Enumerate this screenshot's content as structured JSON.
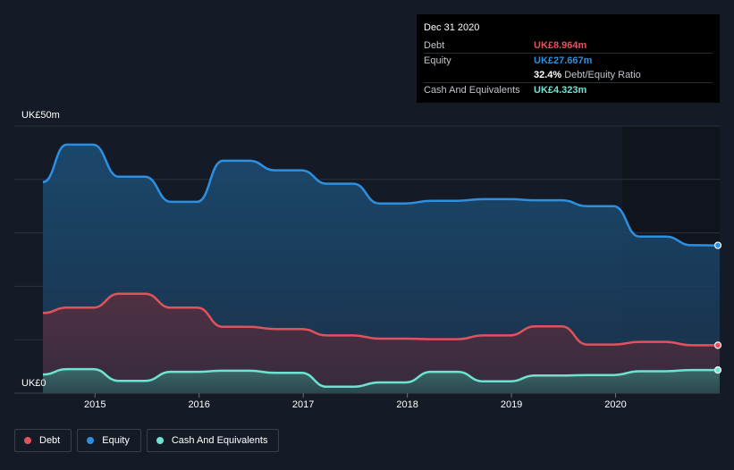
{
  "chart_data": {
    "type": "area",
    "title": "",
    "xlabel": "",
    "ylabel": "",
    "y_tick_labels": [
      "UK£50m",
      "UK£0"
    ],
    "x_tick_labels": [
      "2015",
      "2016",
      "2017",
      "2018",
      "2019",
      "2020"
    ],
    "ylim": [
      0,
      50
    ],
    "xlim": [
      2014.5,
      2021.0
    ],
    "grid": true,
    "legend_position": "bottom-left",
    "series": [
      {
        "name": "Equity",
        "color": "#2d8fe0",
        "x": [
          2014.5,
          2014.73,
          2014.98,
          2015.23,
          2015.48,
          2015.73,
          2015.98,
          2016.23,
          2016.48,
          2016.73,
          2016.98,
          2017.23,
          2017.48,
          2017.73,
          2017.98,
          2018.23,
          2018.48,
          2018.73,
          2018.98,
          2019.23,
          2019.48,
          2019.73,
          2019.98,
          2020.23,
          2020.48,
          2020.73,
          2021.0
        ],
        "values": [
          39.5,
          46.5,
          46.5,
          40.5,
          40.5,
          35.8,
          35.8,
          43.5,
          43.5,
          41.7,
          41.7,
          39.2,
          39.2,
          35.5,
          35.5,
          36.0,
          36.0,
          36.3,
          36.3,
          36.1,
          36.1,
          35.0,
          35.0,
          29.3,
          29.3,
          27.7,
          27.667
        ]
      },
      {
        "name": "Debt",
        "color": "#e0525c",
        "x": [
          2014.5,
          2014.73,
          2014.98,
          2015.23,
          2015.48,
          2015.73,
          2015.98,
          2016.23,
          2016.48,
          2016.73,
          2016.98,
          2017.23,
          2017.48,
          2017.73,
          2017.98,
          2018.23,
          2018.48,
          2018.73,
          2018.98,
          2019.23,
          2019.48,
          2019.73,
          2019.98,
          2020.23,
          2020.48,
          2020.73,
          2021.0
        ],
        "values": [
          15.0,
          16.0,
          16.0,
          18.6,
          18.6,
          16.0,
          16.0,
          12.4,
          12.4,
          12.0,
          12.0,
          10.8,
          10.8,
          10.2,
          10.2,
          10.1,
          10.1,
          10.8,
          10.8,
          12.5,
          12.5,
          9.1,
          9.1,
          9.6,
          9.6,
          8.964,
          8.964
        ]
      },
      {
        "name": "Cash And Equivalents",
        "color": "#6fe3d1",
        "x": [
          2014.5,
          2014.73,
          2014.98,
          2015.23,
          2015.48,
          2015.73,
          2015.98,
          2016.23,
          2016.48,
          2016.73,
          2016.98,
          2017.23,
          2017.48,
          2017.73,
          2017.98,
          2018.23,
          2018.48,
          2018.73,
          2018.98,
          2019.23,
          2019.48,
          2019.73,
          2019.98,
          2020.23,
          2020.48,
          2020.73,
          2021.0
        ],
        "values": [
          3.5,
          4.5,
          4.5,
          2.3,
          2.3,
          4.0,
          4.0,
          4.2,
          4.2,
          3.8,
          3.8,
          1.2,
          1.2,
          2.0,
          2.0,
          4.0,
          4.0,
          2.2,
          2.2,
          3.3,
          3.3,
          3.4,
          3.4,
          4.1,
          4.1,
          4.323,
          4.323
        ]
      }
    ]
  },
  "tooltip": {
    "date": "Dec 31 2020",
    "rows": [
      {
        "label": "Debt",
        "value": "UK£8.964m",
        "color": "#e0525c"
      },
      {
        "label": "Equity",
        "value": "UK£27.667m",
        "color": "#2d8fe0"
      },
      {
        "label": "",
        "value": "32.4%",
        "suffix": "Debt/Equity Ratio",
        "color": "#ffffff"
      },
      {
        "label": "Cash And Equivalents",
        "value": "UK£4.323m",
        "color": "#6fe3d1"
      }
    ]
  },
  "legend": [
    {
      "label": "Debt",
      "color": "#e0525c"
    },
    {
      "label": "Equity",
      "color": "#2d8fe0"
    },
    {
      "label": "Cash And Equivalents",
      "color": "#6fe3d1"
    }
  ]
}
